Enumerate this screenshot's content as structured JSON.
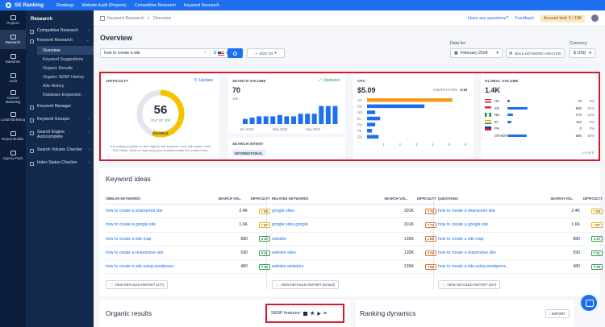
{
  "topbar": {
    "logo": "SE Ranking",
    "nav": [
      "Rankings",
      "Website Audit (Projects)",
      "Competitive Research",
      "Keyword Research"
    ]
  },
  "iconbar": [
    {
      "label": "Projects",
      "icon": "folder-icon"
    },
    {
      "label": "Research",
      "icon": "research-icon",
      "active": true
    },
    {
      "label": "Backlinks",
      "icon": "link-icon"
    },
    {
      "label": "Audit",
      "icon": "audit-icon"
    },
    {
      "label": "Content Marketing",
      "icon": "pen-icon"
    },
    {
      "label": "Local Marketing",
      "icon": "pin-icon"
    },
    {
      "label": "Report Builder",
      "icon": "report-icon"
    },
    {
      "label": "Agency Pack",
      "icon": "agency-icon"
    }
  ],
  "sidebar": {
    "header": "Research",
    "competitive": "Competitive Research",
    "keyword_research": "Keyword Research",
    "subitems": [
      "Overview",
      "Keyword Suggestions",
      "Organic Results",
      "Organic SERP History",
      "Ads History",
      "Database Expansion"
    ],
    "more": [
      "Keyword Manager",
      "Keyword Grouper",
      "Search Engine Autocomplete",
      "Search Volume Checker",
      "Index Status Checker"
    ]
  },
  "breadcrumb": {
    "parent": "Keyword Research",
    "sep": ">",
    "current": "Overview"
  },
  "header_right": {
    "questions": "Have any questions?",
    "feedback": "Feedback",
    "account": "Account limit: 5 / 10K"
  },
  "page": {
    "title": "Overview"
  },
  "search": {
    "value": "how to create a site",
    "clear": "×",
    "engine": "G"
  },
  "add_to": "ADD TO",
  "data_for": {
    "label": "Data for:",
    "value": "February 2024"
  },
  "bulk": "BULK KEYWORD ANALYSIS",
  "currency": {
    "label": "Currency:",
    "value": "$ USD"
  },
  "difficulty": {
    "label": "DIFFICULTY",
    "update": "Update",
    "value": "56",
    "out_of": "OUT OF 100",
    "level": "DOABLE",
    "note": "It is entirely possible to rank high for this keyword, but it will require more SEO effort. Work on improving your backlink profile and content first.",
    "fraction": 0.56
  },
  "volume": {
    "label": "SEARCH VOLUME",
    "status": "Updated",
    "value": "70",
    "ytick": "100",
    "xticks": [
      "Jan 2023",
      "May 2023",
      "Sep 2023"
    ],
    "bars": [
      20,
      25,
      30,
      30,
      30,
      35,
      30,
      30,
      40,
      40,
      40,
      70,
      70,
      70
    ]
  },
  "intent": {
    "label": "SEARCH INTENT",
    "value": "INFORMATIONAL"
  },
  "cpc": {
    "label": "CPC",
    "value": "$5.09",
    "competition_label": "COMPETITION:",
    "competition_value": "0.18",
    "countries": [
      "US",
      "SG",
      "NG",
      "IN",
      "PH",
      "PK",
      "GB"
    ],
    "values": [
      5.2,
      3.5,
      0.5,
      0.8,
      0.5,
      0.3,
      0.7
    ],
    "xticks": [
      "1",
      "2",
      "3",
      "4",
      "5",
      "6"
    ],
    "xmax": 6
  },
  "global": {
    "label": "GLOBAL VOLUME",
    "value": "1.4K",
    "rows": [
      {
        "cc": "US",
        "num": "70",
        "pct": "5%",
        "frac": 0.05,
        "flag": "us"
      },
      {
        "cc": "SG",
        "num": "590",
        "pct": "41%",
        "frac": 0.41,
        "flag": "sg"
      },
      {
        "cc": "NG",
        "num": "170",
        "pct": "12%",
        "frac": 0.12,
        "flag": "ng"
      },
      {
        "cc": "IN",
        "num": "110",
        "pct": "8%",
        "frac": 0.08,
        "flag": "in"
      },
      {
        "cc": "PH",
        "num": "0",
        "pct": "0%",
        "frac": 0.0,
        "flag": "ph"
      },
      {
        "cc": "OTHER",
        "num": "590",
        "pct": "40%",
        "frac": 0.4,
        "flag": "none"
      }
    ],
    "footer": "1–6 of 6"
  },
  "ideas": {
    "title": "Keyword ideas",
    "vol_head": "SEARCH VOL.",
    "diff_head": "DIFFICULTY",
    "columns": [
      {
        "head": "SIMILAR KEYWORDS",
        "button": "VIEW DETAILED REPORT (277)",
        "rows": [
          {
            "kw": "how to create a sharepoint site",
            "vol": "2.4K",
            "diff": "58"
          },
          {
            "kw": "how to create a google site",
            "vol": "1.6K",
            "diff": "57"
          },
          {
            "kw": "how to create a site map",
            "vol": "880",
            "diff": "40"
          },
          {
            "kw": "how to create a responsive site",
            "vol": "590",
            "diff": "31"
          },
          {
            "kw": "how to create a site using wordpress",
            "vol": "480",
            "diff": "38"
          }
        ]
      },
      {
        "head": "RELATED KEYWORDS",
        "button": "VIEW DETAILED REPORT (28,623)",
        "rows": [
          {
            "kw": "google sites",
            "vol": "301K",
            "diff": "75"
          },
          {
            "kw": "google sites google",
            "vol": "301K",
            "diff": "73"
          },
          {
            "kw": "website",
            "vol": "135K",
            "diff": "88"
          },
          {
            "kw": "website sites",
            "vol": "135K",
            "diff": "79"
          },
          {
            "kw": "website websites",
            "vol": "135K",
            "diff": "89"
          }
        ]
      },
      {
        "head": "QUESTIONS",
        "button": "VIEW DETAILED REPORT (267)",
        "rows": [
          {
            "kw": "how to create a sharepoint site",
            "vol": "2.4K",
            "diff": "58"
          },
          {
            "kw": "how to create a google site",
            "vol": "1.6K",
            "diff": "57"
          },
          {
            "kw": "how to create a site map",
            "vol": "880",
            "diff": "40"
          },
          {
            "kw": "how to create a responsive site",
            "vol": "590",
            "diff": "31"
          },
          {
            "kw": "how to create a site using wordpress",
            "vol": "480",
            "diff": "38"
          }
        ]
      }
    ]
  },
  "organic": {
    "title": "Organic results"
  },
  "serp": {
    "label": "SERP features:"
  },
  "ranking": {
    "title": "Ranking dynamics",
    "export": "EXPORT"
  },
  "colors": {
    "accent": "#1e6ff0",
    "highlight": "#d51a2b",
    "gauge": "#f5c400",
    "cpc_top": "#f59a1a"
  }
}
